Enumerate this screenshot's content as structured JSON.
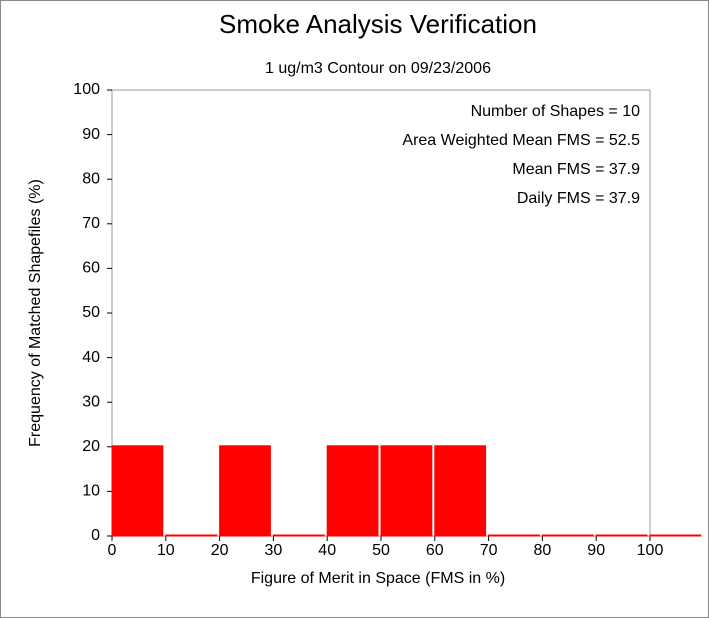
{
  "chart_data": {
    "type": "histogram",
    "title": "Smoke Analysis Verification",
    "subtitle": "1 ug/m3 Contour on 09/23/2006",
    "x_label": "Figure of Merit in Space (FMS in %)",
    "y_label": "Frequency of Matched Shapefiles (%)",
    "annotations": [
      "Number of Shapes = 10",
      "Area Weighted Mean FMS = 52.5",
      "Mean FMS = 37.9",
      "Daily FMS = 37.9"
    ],
    "bins": [
      0,
      10,
      20,
      30,
      40,
      50,
      60,
      70,
      80,
      90,
      100,
      110
    ],
    "values": [
      20,
      0,
      20,
      0,
      20,
      20,
      20,
      0,
      0,
      0,
      0
    ],
    "color": "#ff0000",
    "xlim": [
      0,
      100
    ],
    "xticks": [
      0,
      10,
      20,
      30,
      40,
      50,
      60,
      70,
      80,
      90,
      100
    ],
    "ylim": [
      0,
      100
    ],
    "yticks": [
      0,
      10,
      20,
      30,
      40,
      50,
      60,
      70,
      80,
      90,
      100
    ]
  }
}
